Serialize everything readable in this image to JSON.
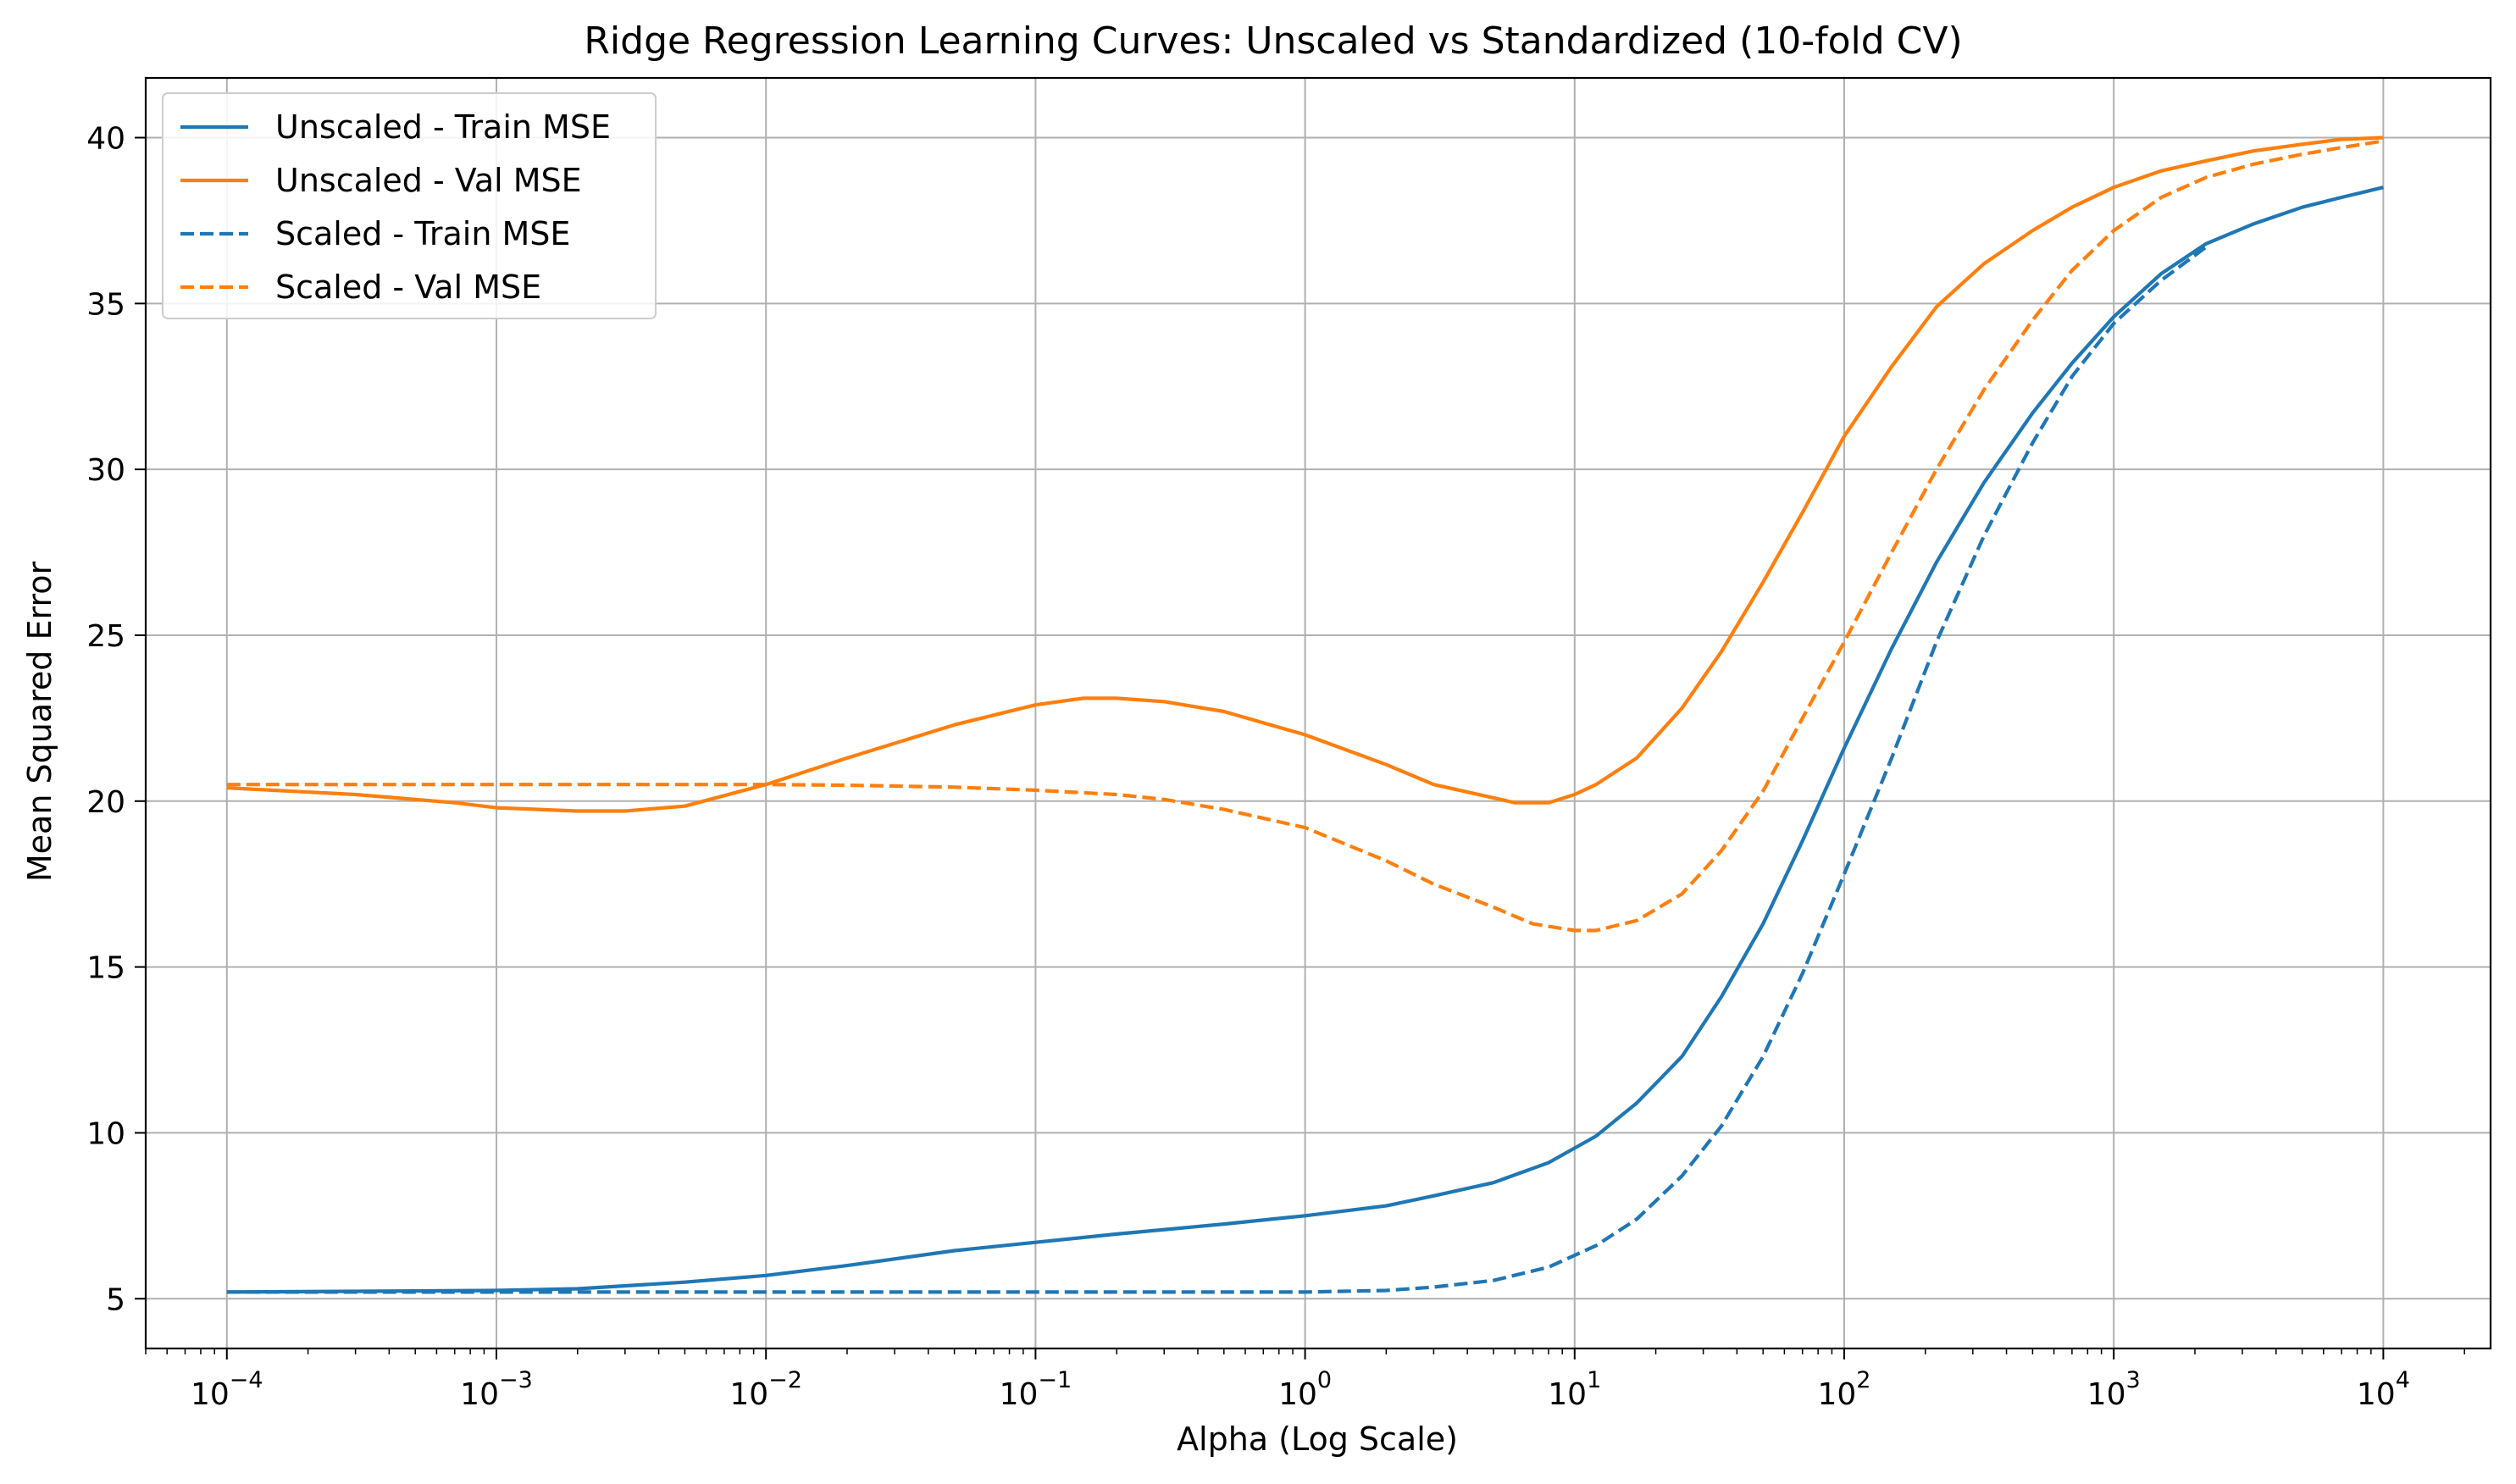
{
  "chart_data": {
    "type": "line",
    "title": "Ridge Regression Learning Curves: Unscaled vs Standardized (10-fold CV)",
    "xlabel": "Alpha (Log Scale)",
    "ylabel": "Mean Squared Error",
    "xscale": "log",
    "xlim": [
      5e-05,
      25000
    ],
    "ylim": [
      3.5,
      41.8
    ],
    "grid": true,
    "legend_position": "top-left",
    "x_ticks": [
      {
        "value": 0.0001,
        "base": "10",
        "exp": "−4"
      },
      {
        "value": 0.001,
        "base": "10",
        "exp": "−3"
      },
      {
        "value": 0.01,
        "base": "10",
        "exp": "−2"
      },
      {
        "value": 0.1,
        "base": "10",
        "exp": "−1"
      },
      {
        "value": 1,
        "base": "10",
        "exp": "0"
      },
      {
        "value": 10,
        "base": "10",
        "exp": "1"
      },
      {
        "value": 100,
        "base": "10",
        "exp": "2"
      },
      {
        "value": 1000,
        "base": "10",
        "exp": "3"
      },
      {
        "value": 10000,
        "base": "10",
        "exp": "4"
      }
    ],
    "y_ticks": [
      5,
      10,
      15,
      20,
      25,
      30,
      35,
      40
    ],
    "series": [
      {
        "name": "Unscaled - Train MSE",
        "color": "#1f77b4",
        "style": "solid",
        "points": [
          [
            0.0001,
            5.2
          ],
          [
            0.001,
            5.25
          ],
          [
            0.002,
            5.3
          ],
          [
            0.005,
            5.5
          ],
          [
            0.01,
            5.7
          ],
          [
            0.02,
            6.0
          ],
          [
            0.05,
            6.45
          ],
          [
            0.1,
            6.7
          ],
          [
            0.2,
            6.95
          ],
          [
            0.5,
            7.25
          ],
          [
            1,
            7.5
          ],
          [
            2,
            7.8
          ],
          [
            3,
            8.1
          ],
          [
            5,
            8.5
          ],
          [
            8,
            9.1
          ],
          [
            12,
            9.9
          ],
          [
            17,
            10.9
          ],
          [
            25,
            12.3
          ],
          [
            35,
            14.1
          ],
          [
            50,
            16.3
          ],
          [
            70,
            18.8
          ],
          [
            100,
            21.6
          ],
          [
            150,
            24.6
          ],
          [
            220,
            27.2
          ],
          [
            330,
            29.6
          ],
          [
            500,
            31.7
          ],
          [
            700,
            33.2
          ],
          [
            1000,
            34.6
          ],
          [
            1500,
            35.9
          ],
          [
            2200,
            36.8
          ],
          [
            3300,
            37.4
          ],
          [
            5000,
            37.9
          ],
          [
            7000,
            38.2
          ],
          [
            10000,
            38.5
          ]
        ]
      },
      {
        "name": "Unscaled - Val MSE",
        "color": "#ff7f0e",
        "style": "solid",
        "points": [
          [
            0.0001,
            20.4
          ],
          [
            0.0003,
            20.2
          ],
          [
            0.0007,
            19.95
          ],
          [
            0.001,
            19.8
          ],
          [
            0.002,
            19.7
          ],
          [
            0.003,
            19.7
          ],
          [
            0.005,
            19.85
          ],
          [
            0.01,
            20.5
          ],
          [
            0.02,
            21.3
          ],
          [
            0.05,
            22.3
          ],
          [
            0.1,
            22.9
          ],
          [
            0.15,
            23.1
          ],
          [
            0.2,
            23.1
          ],
          [
            0.3,
            23.0
          ],
          [
            0.5,
            22.7
          ],
          [
            1,
            22.0
          ],
          [
            2,
            21.1
          ],
          [
            3,
            20.5
          ],
          [
            5,
            20.1
          ],
          [
            6,
            19.95
          ],
          [
            8,
            19.95
          ],
          [
            10,
            20.2
          ],
          [
            12,
            20.5
          ],
          [
            17,
            21.3
          ],
          [
            25,
            22.8
          ],
          [
            35,
            24.5
          ],
          [
            50,
            26.6
          ],
          [
            70,
            28.7
          ],
          [
            100,
            31.0
          ],
          [
            150,
            33.1
          ],
          [
            220,
            34.9
          ],
          [
            330,
            36.2
          ],
          [
            500,
            37.2
          ],
          [
            700,
            37.9
          ],
          [
            1000,
            38.5
          ],
          [
            1500,
            39.0
          ],
          [
            2200,
            39.3
          ],
          [
            3300,
            39.6
          ],
          [
            5000,
            39.8
          ],
          [
            7000,
            39.95
          ],
          [
            10000,
            40.0
          ]
        ]
      },
      {
        "name": "Scaled - Train MSE",
        "color": "#1f77b4",
        "style": "dashed",
        "points": [
          [
            0.0001,
            5.2
          ],
          [
            0.001,
            5.2
          ],
          [
            0.01,
            5.2
          ],
          [
            0.1,
            5.2
          ],
          [
            0.5,
            5.2
          ],
          [
            1,
            5.2
          ],
          [
            2,
            5.25
          ],
          [
            3,
            5.35
          ],
          [
            5,
            5.55
          ],
          [
            8,
            5.95
          ],
          [
            12,
            6.6
          ],
          [
            17,
            7.4
          ],
          [
            25,
            8.7
          ],
          [
            35,
            10.2
          ],
          [
            50,
            12.3
          ],
          [
            70,
            14.8
          ],
          [
            100,
            17.8
          ],
          [
            150,
            21.3
          ],
          [
            220,
            24.8
          ],
          [
            330,
            28.0
          ],
          [
            500,
            30.8
          ],
          [
            700,
            32.8
          ],
          [
            1000,
            34.4
          ],
          [
            1500,
            35.7
          ],
          [
            2200,
            36.7
          ]
        ]
      },
      {
        "name": "Scaled - Val MSE",
        "color": "#ff7f0e",
        "style": "dashed",
        "points": [
          [
            0.0001,
            20.5
          ],
          [
            0.001,
            20.5
          ],
          [
            0.01,
            20.5
          ],
          [
            0.02,
            20.48
          ],
          [
            0.05,
            20.42
          ],
          [
            0.1,
            20.33
          ],
          [
            0.2,
            20.2
          ],
          [
            0.3,
            20.05
          ],
          [
            0.5,
            19.75
          ],
          [
            1,
            19.2
          ],
          [
            2,
            18.2
          ],
          [
            3,
            17.5
          ],
          [
            5,
            16.8
          ],
          [
            7,
            16.3
          ],
          [
            10,
            16.1
          ],
          [
            12,
            16.1
          ],
          [
            17,
            16.4
          ],
          [
            25,
            17.2
          ],
          [
            35,
            18.5
          ],
          [
            50,
            20.3
          ],
          [
            70,
            22.5
          ],
          [
            100,
            24.8
          ],
          [
            150,
            27.5
          ],
          [
            220,
            30.0
          ],
          [
            330,
            32.4
          ],
          [
            500,
            34.5
          ],
          [
            700,
            36.0
          ],
          [
            1000,
            37.2
          ],
          [
            1500,
            38.2
          ],
          [
            2200,
            38.8
          ],
          [
            3300,
            39.2
          ],
          [
            5000,
            39.5
          ],
          [
            7000,
            39.7
          ],
          [
            10000,
            39.9
          ]
        ]
      }
    ]
  }
}
